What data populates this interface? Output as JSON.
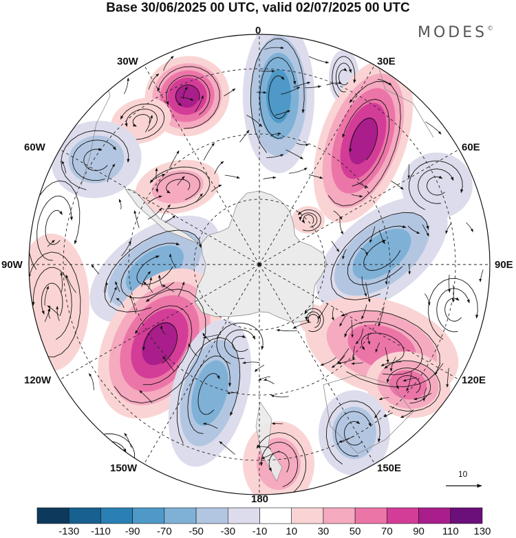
{
  "title": "Base 30/06/2025 00 UTC, valid 02/07/2025 00 UTC",
  "brand": {
    "name": "MODES",
    "mark": "©"
  },
  "longitude_labels": {
    "lon_0": "0",
    "lon_30E": "30E",
    "lon_60E": "60E",
    "lon_90E": "90E",
    "lon_120E": "120E",
    "lon_150E": "150E",
    "lon_180": "180",
    "lon_150W": "150W",
    "lon_120W": "120W",
    "lon_90W": "90W",
    "lon_60W": "60W",
    "lon_30W": "30W"
  },
  "reference_vector": {
    "label": "10"
  },
  "colorbar": {
    "tick_labels": [
      "-130",
      "-110",
      "-90",
      "-70",
      "-50",
      "-30",
      "-10",
      "10",
      "30",
      "50",
      "70",
      "90",
      "110",
      "130"
    ],
    "colors": [
      "#0d3a5c",
      "#17608f",
      "#2a7fb4",
      "#4e99c7",
      "#7fb1d7",
      "#b3c6e1",
      "#dcdcec",
      "#ffffff",
      "#fad4d4",
      "#f5aac0",
      "#ec75a8",
      "#d33d97",
      "#a91e8b",
      "#6b0f7a"
    ]
  },
  "colors": {
    "land": "#ebebeb",
    "coast": "#888888",
    "grid": "#222222"
  }
}
